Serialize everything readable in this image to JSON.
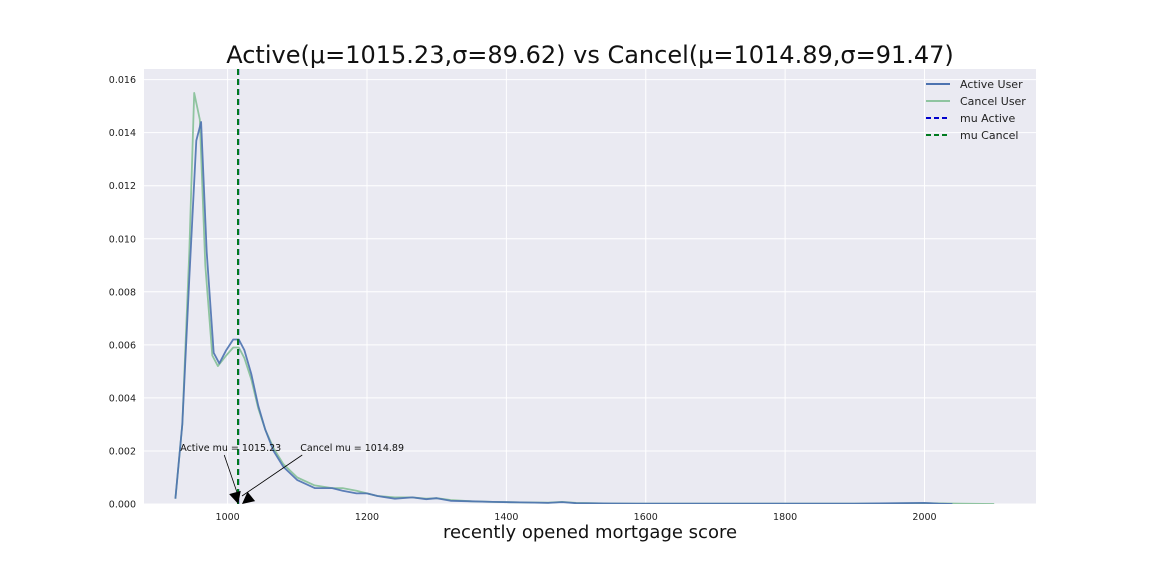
{
  "chart_data": {
    "type": "line",
    "title": "Active(μ=1015.23,σ=89.62) vs Cancel(μ=1014.89,σ=91.47)",
    "xlabel": "recently opened mortgage score",
    "ylabel": "",
    "xlim": [
      880,
      2160
    ],
    "ylim": [
      0,
      0.0164
    ],
    "xticks": [
      1000,
      1200,
      1400,
      1600,
      1800,
      2000
    ],
    "xtick_labels": [
      "1000",
      "1200",
      "1400",
      "1600",
      "1800",
      "2000"
    ],
    "yticks": [
      0.0,
      0.002,
      0.004,
      0.006,
      0.008,
      0.01,
      0.012,
      0.014,
      0.016
    ],
    "ytick_labels": [
      "0.000",
      "0.002",
      "0.004",
      "0.006",
      "0.008",
      "0.010",
      "0.012",
      "0.014",
      "0.016"
    ],
    "grid": true,
    "legend_position": "top-right",
    "series": [
      {
        "name": "Active User",
        "color": "#4c72b0",
        "x": [
          925,
          935,
          945,
          955,
          962,
          970,
          980,
          988,
          998,
          1008,
          1016,
          1024,
          1034,
          1044,
          1054,
          1066,
          1080,
          1100,
          1125,
          1150,
          1165,
          1185,
          1200,
          1215,
          1240,
          1265,
          1285,
          1300,
          1320,
          1350,
          1380,
          1420,
          1460,
          1480,
          1500,
          1550,
          1600,
          1700,
          1800,
          1900,
          2000,
          2020,
          2040
        ],
        "y": [
          0.0002,
          0.003,
          0.0085,
          0.0137,
          0.0144,
          0.0095,
          0.0057,
          0.0053,
          0.0058,
          0.0062,
          0.0062,
          0.0058,
          0.0049,
          0.0037,
          0.0028,
          0.002,
          0.0014,
          0.0009,
          0.0006,
          0.0006,
          0.0005,
          0.0004,
          0.0004,
          0.0003,
          0.0002,
          0.00025,
          0.00018,
          0.00022,
          0.00012,
          0.0001,
          8e-05,
          6e-05,
          4e-05,
          7e-05,
          3e-05,
          2e-05,
          1e-05,
          1e-05,
          1e-05,
          1e-05,
          4e-05,
          1e-05,
          0.0
        ]
      },
      {
        "name": "Cancel User",
        "color": "#8fc4a0",
        "x": [
          925,
          935,
          945,
          952,
          960,
          968,
          978,
          986,
          998,
          1008,
          1016,
          1024,
          1034,
          1044,
          1054,
          1066,
          1080,
          1100,
          1125,
          1150,
          1165,
          1185,
          1200,
          1215,
          1240,
          1265,
          1285,
          1300,
          1320,
          1350,
          1380,
          1420,
          1460,
          1480,
          1500,
          1550,
          1600,
          1700,
          1800,
          1900,
          2000,
          2050,
          2100
        ],
        "y": [
          0.0002,
          0.003,
          0.0095,
          0.0155,
          0.0145,
          0.009,
          0.0056,
          0.0052,
          0.0056,
          0.0059,
          0.0059,
          0.0055,
          0.0047,
          0.0036,
          0.0028,
          0.0021,
          0.0015,
          0.001,
          0.0007,
          0.0006,
          0.0006,
          0.0005,
          0.0004,
          0.0003,
          0.00025,
          0.00025,
          0.0002,
          0.00022,
          0.00015,
          0.0001,
          8e-05,
          6e-05,
          5e-05,
          8e-05,
          4e-05,
          2e-05,
          1e-05,
          1e-05,
          1e-05,
          1e-05,
          3e-05,
          1e-05,
          0.0
        ]
      }
    ],
    "vlines": [
      {
        "name": "mu Active",
        "x": 1015.23,
        "color": "#0000cc",
        "style": "dashed"
      },
      {
        "name": "mu Cancel",
        "x": 1014.89,
        "color": "#007a1f",
        "style": "dashed"
      }
    ],
    "annotations": [
      {
        "text": "Active mu = 1015.23",
        "x": 1015.23,
        "y": 0.0
      },
      {
        "text": "Cancel mu = 1014.89",
        "x": 1014.89,
        "y": 0.0
      }
    ],
    "colors": {
      "plot_background": "#eaeaf2",
      "grid": "#ffffff"
    }
  }
}
